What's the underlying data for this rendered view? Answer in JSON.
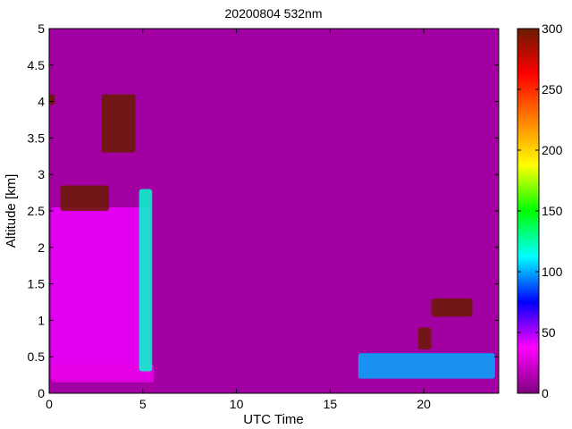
{
  "chart_data": {
    "type": "heatmap",
    "title": "20200804 532nm",
    "xlabel": "UTC Time",
    "ylabel": "Altitude [km]",
    "xlim": [
      0,
      24
    ],
    "ylim": [
      0,
      5
    ],
    "xticks": [
      "0",
      "5",
      "10",
      "15",
      "20"
    ],
    "yticks": [
      "0",
      "0.5",
      "1",
      "1.5",
      "2",
      "2.5",
      "3",
      "3.5",
      "4",
      "4.5",
      "5"
    ],
    "colorbar": {
      "range": [
        0,
        300
      ],
      "ticks": [
        "0",
        "50",
        "100",
        "150",
        "200",
        "250",
        "300"
      ],
      "colormap": [
        "#800080",
        "#ff00ff",
        "#0000ff",
        "#00ffff",
        "#00ff00",
        "#ffff00",
        "#ff8000",
        "#ff0000",
        "#6a1a00"
      ]
    },
    "background_value": 10,
    "features": [
      {
        "name": "boundary-layer-morning",
        "x": [
          0.1,
          5.4
        ],
        "y": [
          0.2,
          2.55
        ],
        "value": 40
      },
      {
        "name": "surface-layer-morning",
        "x": [
          0.1,
          5.6
        ],
        "y": [
          0.15,
          0.4
        ],
        "value": 30
      },
      {
        "name": "aerosol-layer-2.6km",
        "x": [
          0.6,
          3.2
        ],
        "y": [
          2.5,
          2.85
        ],
        "value": 300
      },
      {
        "name": "cloud-3.5-4km",
        "x": [
          2.8,
          4.6
        ],
        "y": [
          3.3,
          4.1
        ],
        "value": 300
      },
      {
        "name": "cloud-4km-start",
        "x": [
          0.0,
          0.3
        ],
        "y": [
          3.95,
          4.1
        ],
        "value": 300
      },
      {
        "name": "cloud-edge-5.2h",
        "x": [
          4.8,
          5.5
        ],
        "y": [
          0.3,
          2.8
        ],
        "value": 120
      },
      {
        "name": "boundary-layer-afternoon",
        "x": [
          16.5,
          23.8
        ],
        "y": [
          0.2,
          0.55
        ],
        "value": 100
      },
      {
        "name": "cloud-afternoon-low",
        "x": [
          19.7,
          20.4
        ],
        "y": [
          0.6,
          0.9
        ],
        "value": 300
      },
      {
        "name": "cloud-afternoon-high",
        "x": [
          20.4,
          22.6
        ],
        "y": [
          1.05,
          1.3
        ],
        "value": 300
      }
    ]
  }
}
